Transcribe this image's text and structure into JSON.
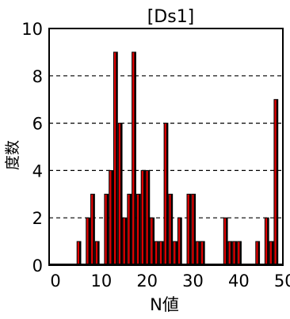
{
  "chart_data": {
    "type": "bar",
    "title": "[Ds1]",
    "xlabel": "N値",
    "ylabel": "度数",
    "xlim": [
      0,
      51
    ],
    "ylim": [
      0,
      10
    ],
    "xticks": [
      0,
      10,
      20,
      30,
      40,
      50
    ],
    "yticks": [
      0,
      2,
      4,
      6,
      8,
      10
    ],
    "grid": "dashed horizontal",
    "bar_color": "#e00000",
    "x": [
      7,
      8,
      9,
      10,
      11,
      12,
      13,
      14,
      15,
      16,
      17,
      18,
      19,
      20,
      21,
      22,
      23,
      24,
      25,
      26,
      27,
      28,
      29,
      30,
      31,
      32,
      33,
      34,
      39,
      40,
      41,
      42,
      46,
      47,
      48,
      49,
      50,
      51
    ],
    "values": [
      1,
      0,
      2,
      3,
      1,
      0,
      3,
      4,
      9,
      6,
      2,
      3,
      9,
      3,
      4,
      4,
      2,
      1,
      1,
      6,
      3,
      1,
      2,
      0,
      3,
      3,
      1,
      1,
      2,
      1,
      1,
      1,
      1,
      0,
      2,
      1,
      7,
      0
    ]
  }
}
